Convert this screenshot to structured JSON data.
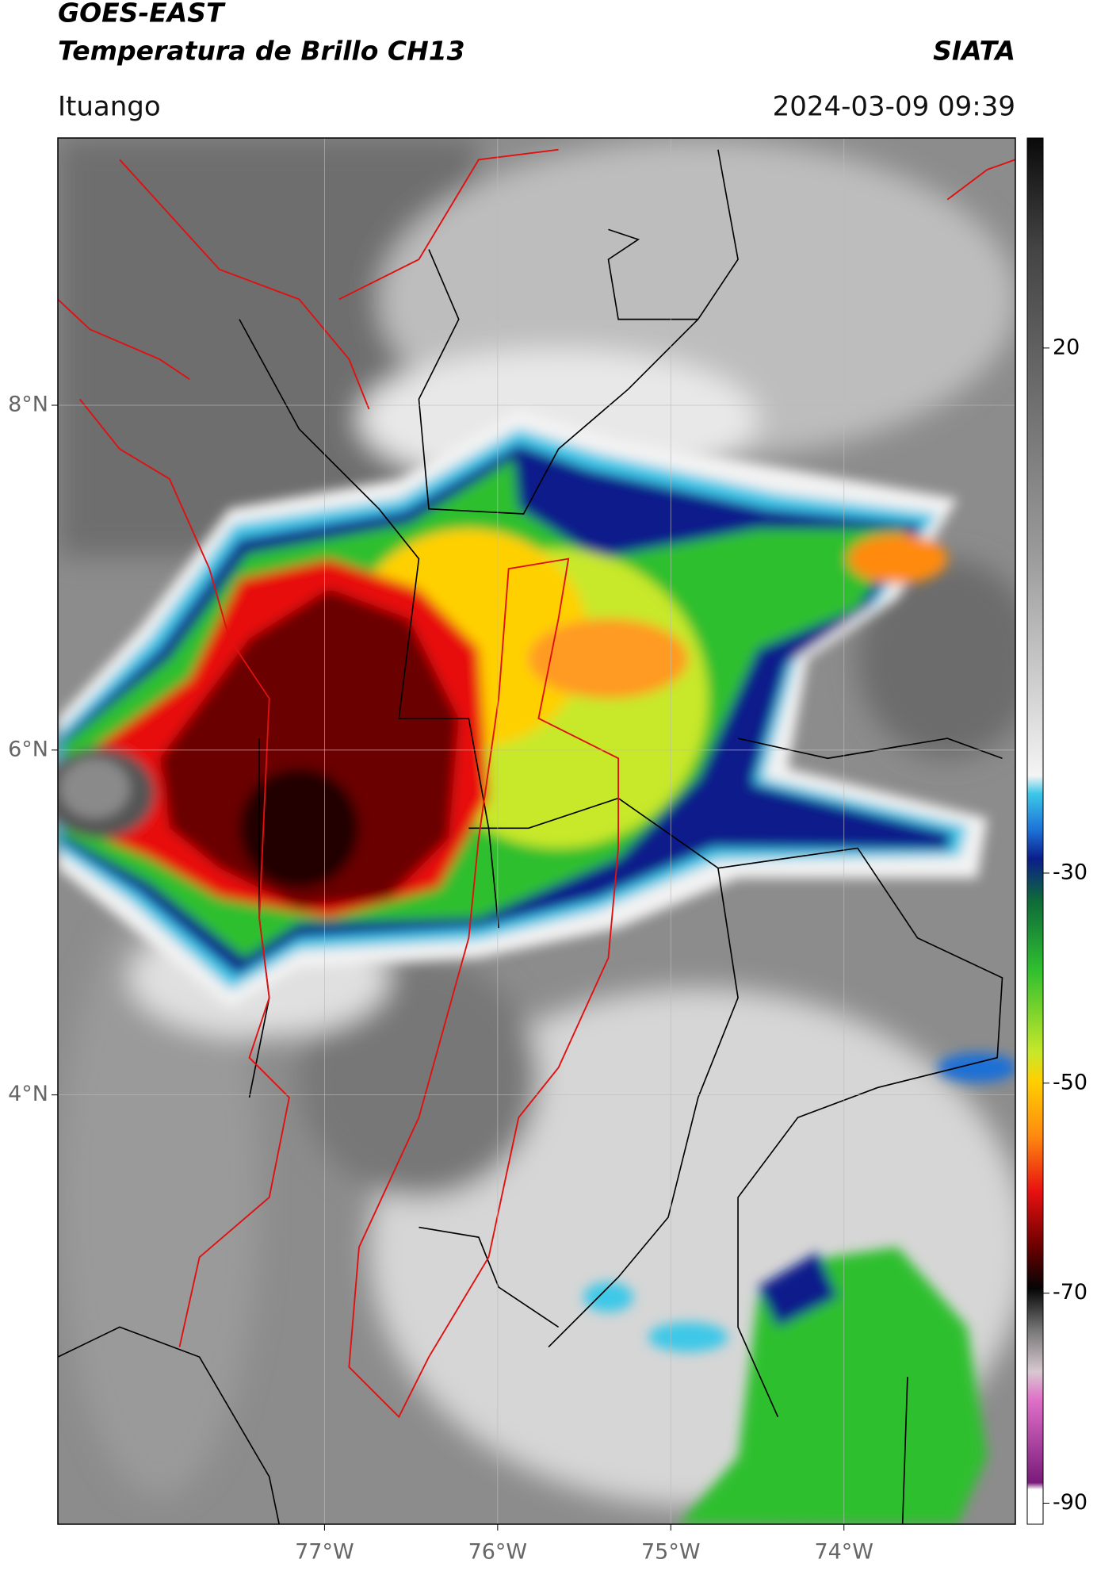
{
  "header": {
    "title": "GOES-EAST",
    "subtitle": "Temperatura de Brillo CH13",
    "org": "SIATA",
    "location": "Ituango",
    "datetime": "2024-03-09 09:39"
  },
  "map": {
    "xlim": [
      -78.54,
      -73.01
    ],
    "ylim": [
      1.51,
      9.55
    ],
    "grid": true,
    "xticks": [
      {
        "value": -77,
        "label": "77°W"
      },
      {
        "value": -76,
        "label": "76°W"
      },
      {
        "value": -75,
        "label": "75°W"
      },
      {
        "value": -74,
        "label": "74°W"
      }
    ],
    "yticks": [
      {
        "value": 8,
        "label": "8°N"
      },
      {
        "value": 6,
        "label": "6°N"
      },
      {
        "value": 4,
        "label": "4°N"
      }
    ]
  },
  "colorbar": {
    "ylim": [
      -92,
      40
    ],
    "yticks": [
      20,
      -30,
      -50,
      -70,
      -90
    ]
  }
}
